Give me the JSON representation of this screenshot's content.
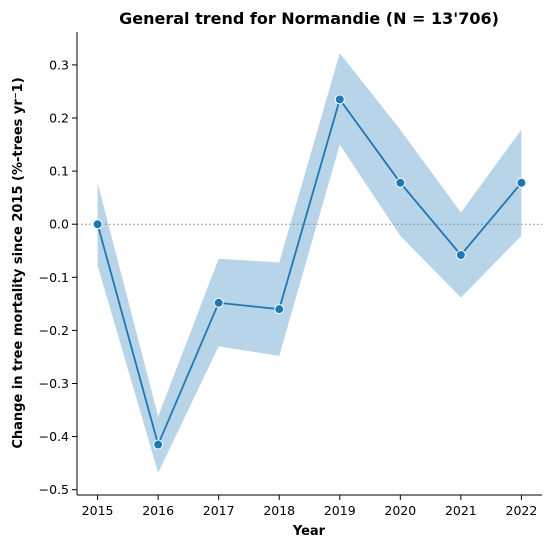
{
  "chart_data": {
    "type": "line",
    "title": "General trend for Normandie  (N = 13'706)",
    "xlabel": "Year",
    "ylabel": "Change in tree mortality since 2015 (%-trees yr⁻1)",
    "x": [
      2015,
      2016,
      2017,
      2018,
      2019,
      2020,
      2021,
      2022
    ],
    "series": [
      {
        "values": [
          0.0,
          -0.415,
          -0.148,
          -0.16,
          0.235,
          0.078,
          -0.058,
          0.078
        ],
        "ci_lower": [
          -0.078,
          -0.468,
          -0.23,
          -0.248,
          0.15,
          -0.022,
          -0.138,
          -0.022
        ],
        "ci_upper": [
          0.078,
          -0.362,
          -0.065,
          -0.072,
          0.322,
          0.178,
          0.022,
          0.178
        ],
        "color": "#1f77b4",
        "band_color": "#b8d4e9"
      }
    ],
    "reference_line": {
      "y": 0.0,
      "style": "dotted",
      "color": "#808080"
    },
    "ylim": [
      -0.51,
      0.362
    ],
    "xlim": [
      2014.66,
      2022.34
    ],
    "yticks": [
      -0.5,
      -0.4,
      -0.3,
      -0.2,
      -0.1,
      0.0,
      0.1,
      0.2,
      0.3
    ],
    "ytick_labels": [
      "−0.5",
      "−0.4",
      "−0.3",
      "−0.2",
      "−0.1",
      "0.0",
      "0.1",
      "0.2",
      "0.3"
    ],
    "xtick_labels": [
      "2015",
      "2016",
      "2017",
      "2018",
      "2019",
      "2020",
      "2021",
      "2022"
    ],
    "grid": false,
    "legend": "none"
  }
}
